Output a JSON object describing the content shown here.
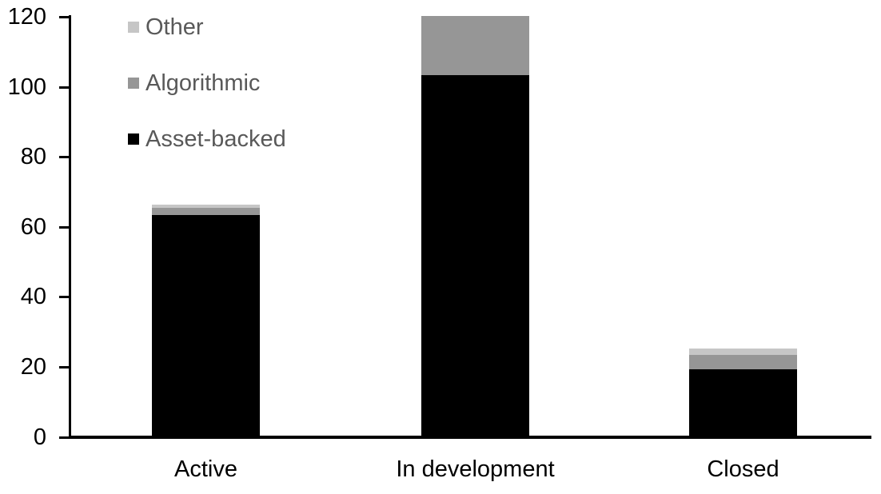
{
  "chart_data": {
    "type": "bar",
    "stacked": true,
    "title": "",
    "xlabel": "",
    "ylabel": "",
    "categories": [
      "Active",
      "In development",
      "Closed"
    ],
    "series": [
      {
        "name": "Asset-backed",
        "color": "#000000",
        "values": [
          63,
          103,
          19
        ]
      },
      {
        "name": "Algorithmic",
        "color": "#969696",
        "values": [
          2,
          17,
          4
        ]
      },
      {
        "name": "Other",
        "color": "#c6c6c6",
        "values": [
          1,
          0,
          2
        ]
      }
    ],
    "totals": [
      66,
      120,
      25
    ],
    "ylim": [
      0,
      120
    ],
    "yticks": [
      0,
      20,
      40,
      60,
      80,
      100,
      120
    ],
    "grid": false,
    "legend": {
      "position": "top-left",
      "order": [
        "Other",
        "Algorithmic",
        "Asset-backed"
      ],
      "text_color": "#595959"
    },
    "axis_color": "#000000"
  }
}
